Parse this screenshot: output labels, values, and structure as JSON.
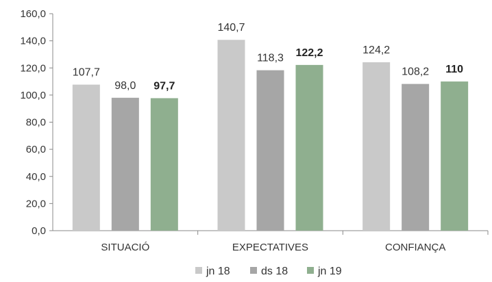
{
  "chart_data": {
    "type": "bar",
    "categories": [
      "SITUACIÓ",
      "EXPECTATIVES",
      "CONFIANÇA"
    ],
    "series": [
      {
        "name": "jn 18",
        "color": "#c9c9c9",
        "values": [
          107.7,
          140.7,
          124.2
        ],
        "labels": [
          "107,7",
          "140,7",
          "124,2"
        ],
        "bold_labels": false
      },
      {
        "name": "ds 18",
        "color": "#a6a6a6",
        "values": [
          98.0,
          118.3,
          108.2
        ],
        "labels": [
          "98,0",
          "118,3",
          "108,2"
        ],
        "bold_labels": false
      },
      {
        "name": "jn 19",
        "color": "#8faf8f",
        "values": [
          97.7,
          122.2,
          110
        ],
        "labels": [
          "97,7",
          "122,2",
          "110"
        ],
        "bold_labels": true
      }
    ],
    "y_ticks": [
      "0,0",
      "20,0",
      "40,0",
      "60,0",
      "80,0",
      "100,0",
      "120,0",
      "140,0",
      "160,0"
    ],
    "ylim": [
      0,
      160
    ],
    "grid": false,
    "legend_position": "bottom"
  }
}
